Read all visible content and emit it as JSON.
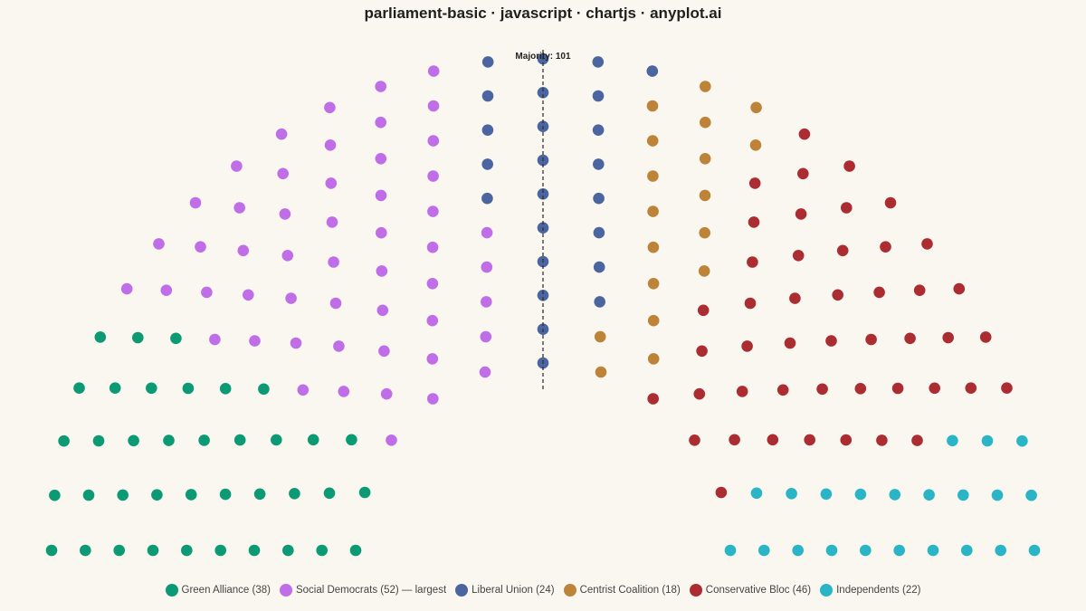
{
  "title": "parliament-basic · javascript · chartjs · anyplot.ai",
  "chart_data": {
    "type": "parliament",
    "total_seats": 200,
    "majority_threshold": 101,
    "majority_label": "Majority: 101",
    "rows": 10,
    "series": [
      {
        "name": "Green Alliance",
        "legend_label": "Green Alliance (38)",
        "seats": 38,
        "color": "#0b9a73"
      },
      {
        "name": "Social Democrats",
        "legend_label": "Social Democrats (52) — largest",
        "seats": 52,
        "color": "#c06ee8"
      },
      {
        "name": "Liberal Union",
        "legend_label": "Liberal Union (24)",
        "seats": 24,
        "color": "#4a65a0"
      },
      {
        "name": "Centrist Coalition",
        "legend_label": "Centrist Coalition (18)",
        "seats": 18,
        "color": "#bd8338"
      },
      {
        "name": "Conservative Bloc",
        "legend_label": "Conservative Bloc (46)",
        "seats": 46,
        "color": "#ab2d31"
      },
      {
        "name": "Independents",
        "legend_label": "Independents (22)",
        "seats": 22,
        "color": "#29b5c6"
      }
    ]
  }
}
